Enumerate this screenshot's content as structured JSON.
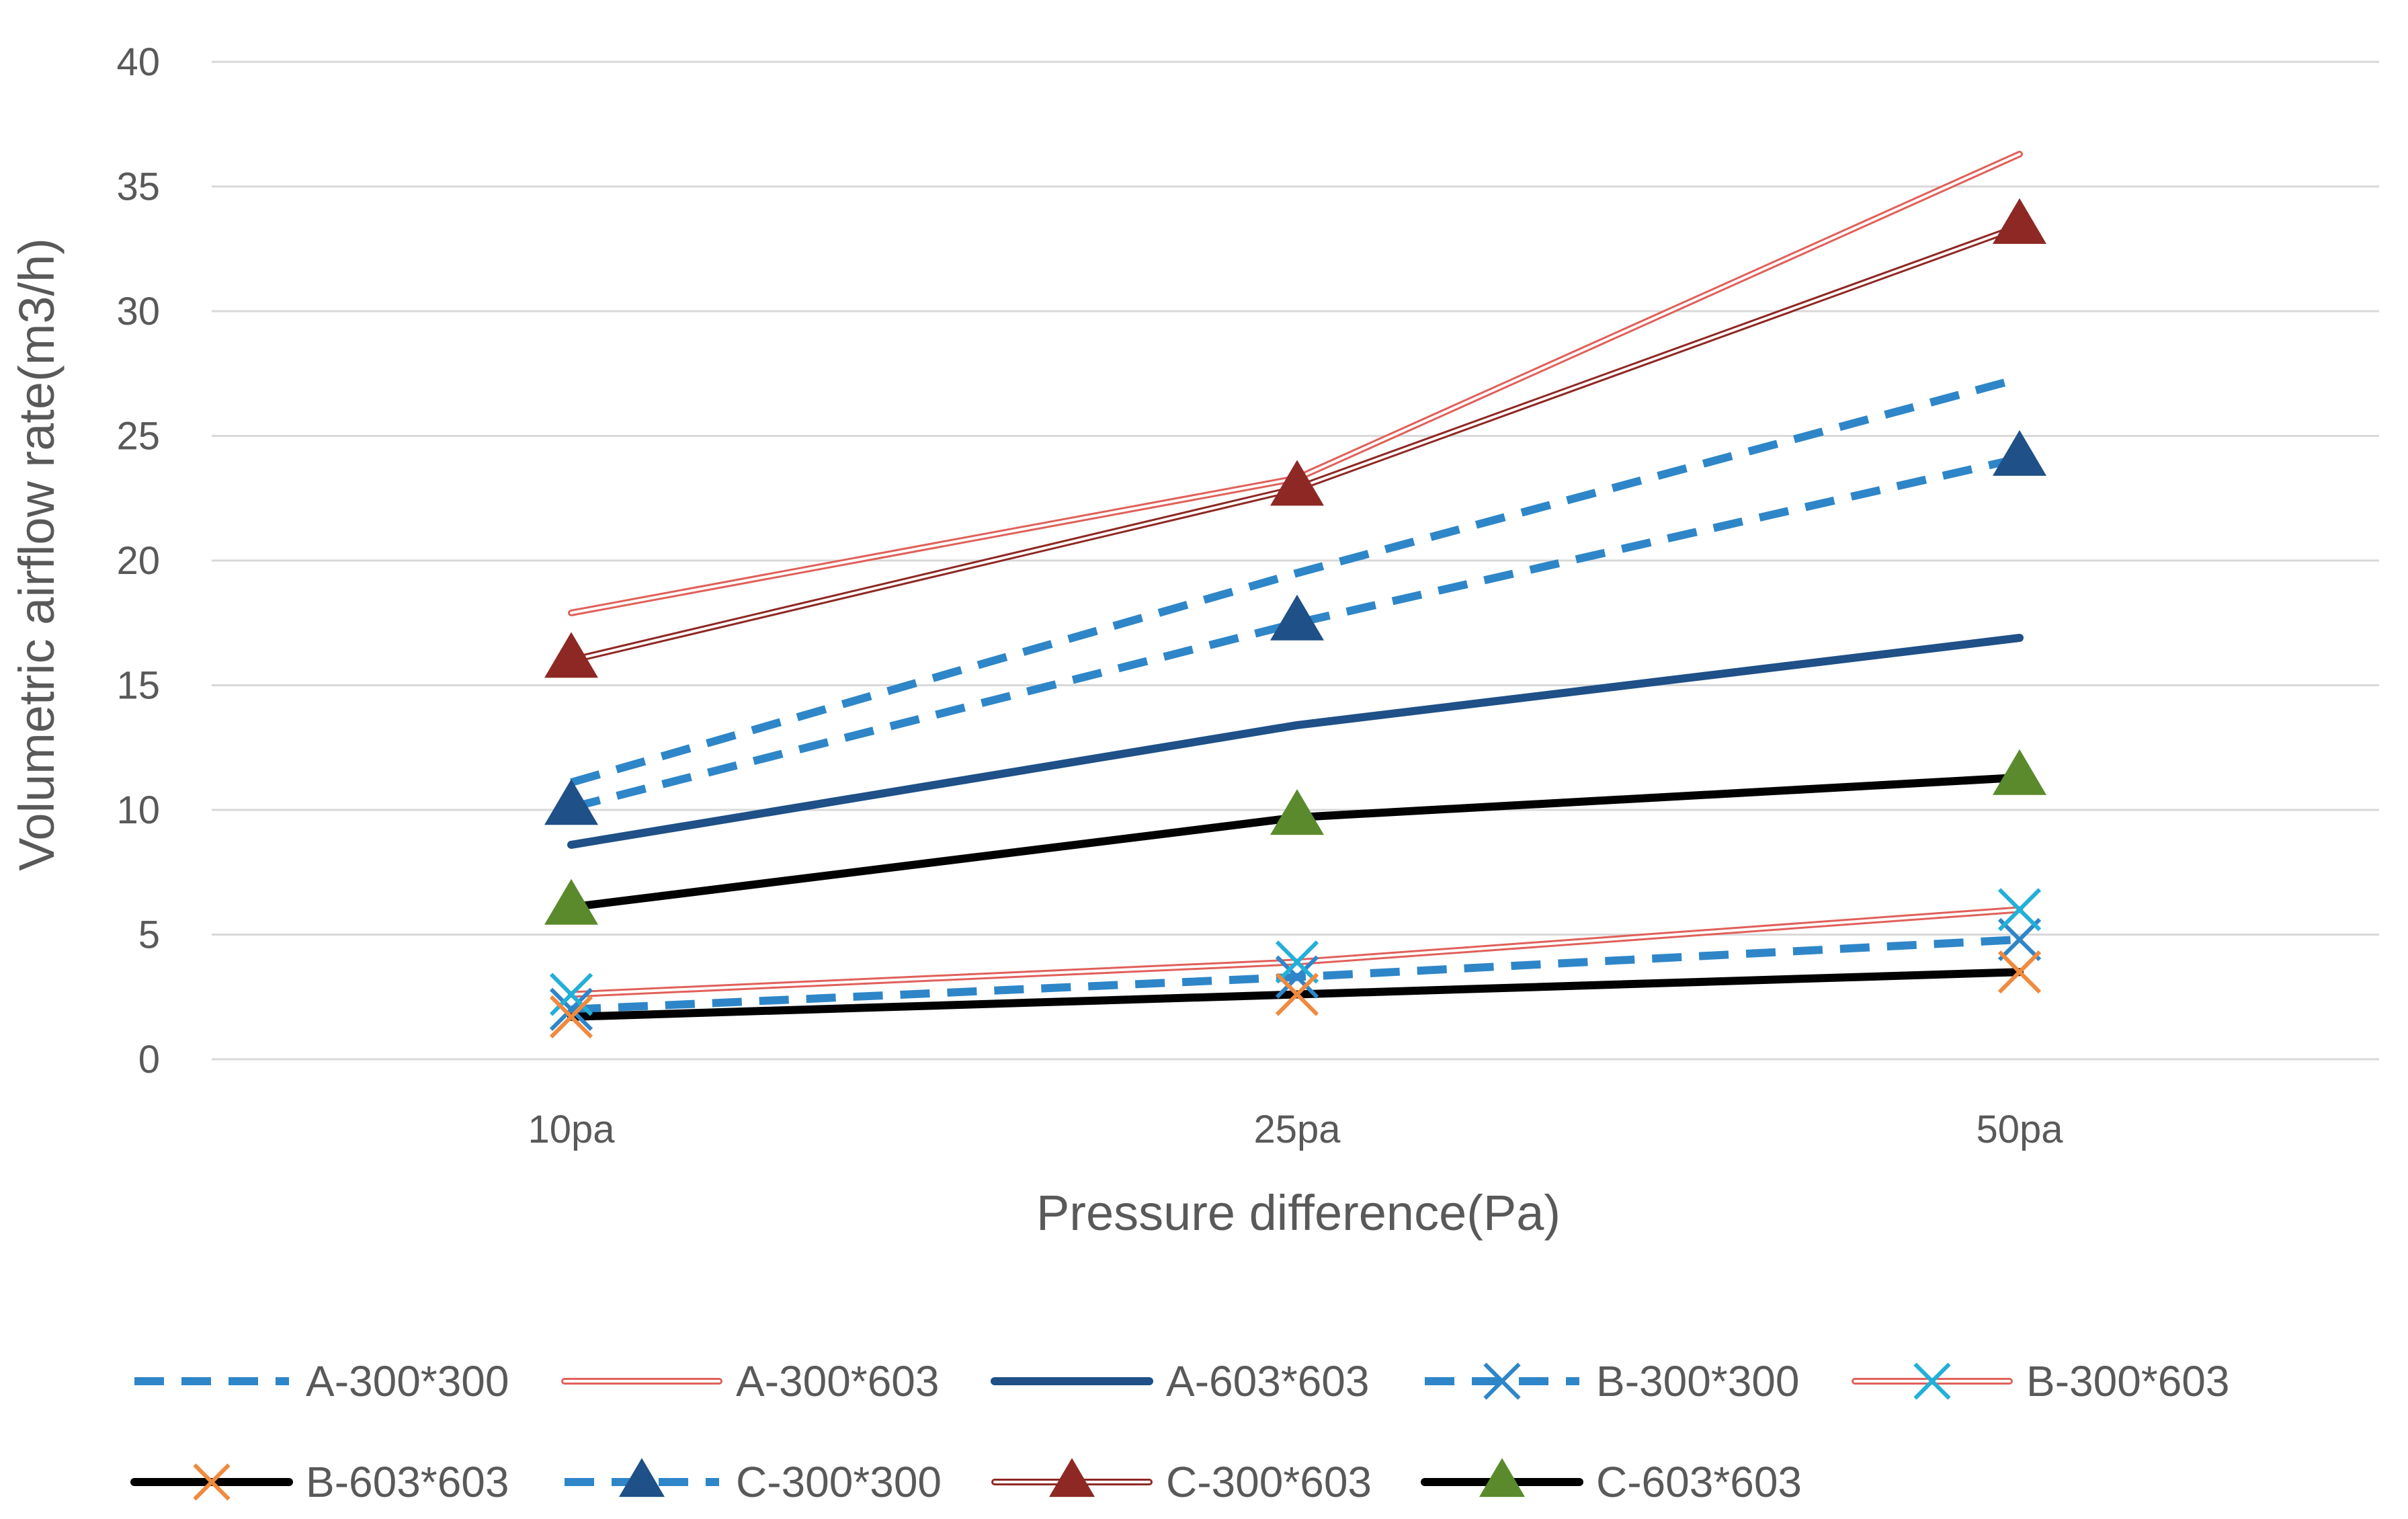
{
  "chart_data": {
    "type": "line",
    "title": "",
    "xlabel": "Pressure difference(Pa)",
    "ylabel": "Volumetric airflow rate(m3/h)",
    "categories": [
      "10pa",
      "25pa",
      "50pa"
    ],
    "ylim": [
      0,
      40
    ],
    "yticks": [
      0,
      5,
      10,
      15,
      20,
      25,
      30,
      35,
      40
    ],
    "grid": true,
    "legend_position": "bottom",
    "series": [
      {
        "name": "A-300*300",
        "values": [
          11.1,
          19.5,
          27.3
        ],
        "color": "#2e86c8",
        "style": "dashed",
        "marker": "none"
      },
      {
        "name": "A-300*603",
        "values": [
          17.9,
          23.3,
          36.3
        ],
        "color": "#e0605a",
        "style": "double",
        "marker": "none"
      },
      {
        "name": "A-603*603",
        "values": [
          8.6,
          13.4,
          16.9
        ],
        "color": "#1f5087",
        "style": "solid",
        "marker": "none"
      },
      {
        "name": "B-300*300",
        "values": [
          2.0,
          3.3,
          4.8
        ],
        "color": "#2e86c8",
        "style": "dashed",
        "marker": "x",
        "marker_color": "#2e86c8"
      },
      {
        "name": "B-300*603",
        "values": [
          2.6,
          3.9,
          6.0
        ],
        "color": "#e0605a",
        "style": "double",
        "marker": "x",
        "marker_color": "#22b0d8"
      },
      {
        "name": "B-603*603",
        "values": [
          1.7,
          2.6,
          3.5
        ],
        "color": "#000000",
        "style": "solid",
        "marker": "x",
        "marker_color": "#f08a3e"
      },
      {
        "name": "C-300*300",
        "values": [
          10.1,
          17.5,
          24.1
        ],
        "color": "#2e86c8",
        "style": "dashed",
        "marker": "triangle",
        "marker_color": "#1f5087"
      },
      {
        "name": "C-300*603",
        "values": [
          16.0,
          22.9,
          33.4
        ],
        "color": "#8e2824",
        "style": "double",
        "marker": "triangle",
        "marker_color": "#8e2824"
      },
      {
        "name": "C-603*603",
        "values": [
          6.1,
          9.7,
          11.3
        ],
        "color": "#000000",
        "style": "solid",
        "marker": "triangle",
        "marker_color": "#5b8a2c"
      }
    ]
  }
}
